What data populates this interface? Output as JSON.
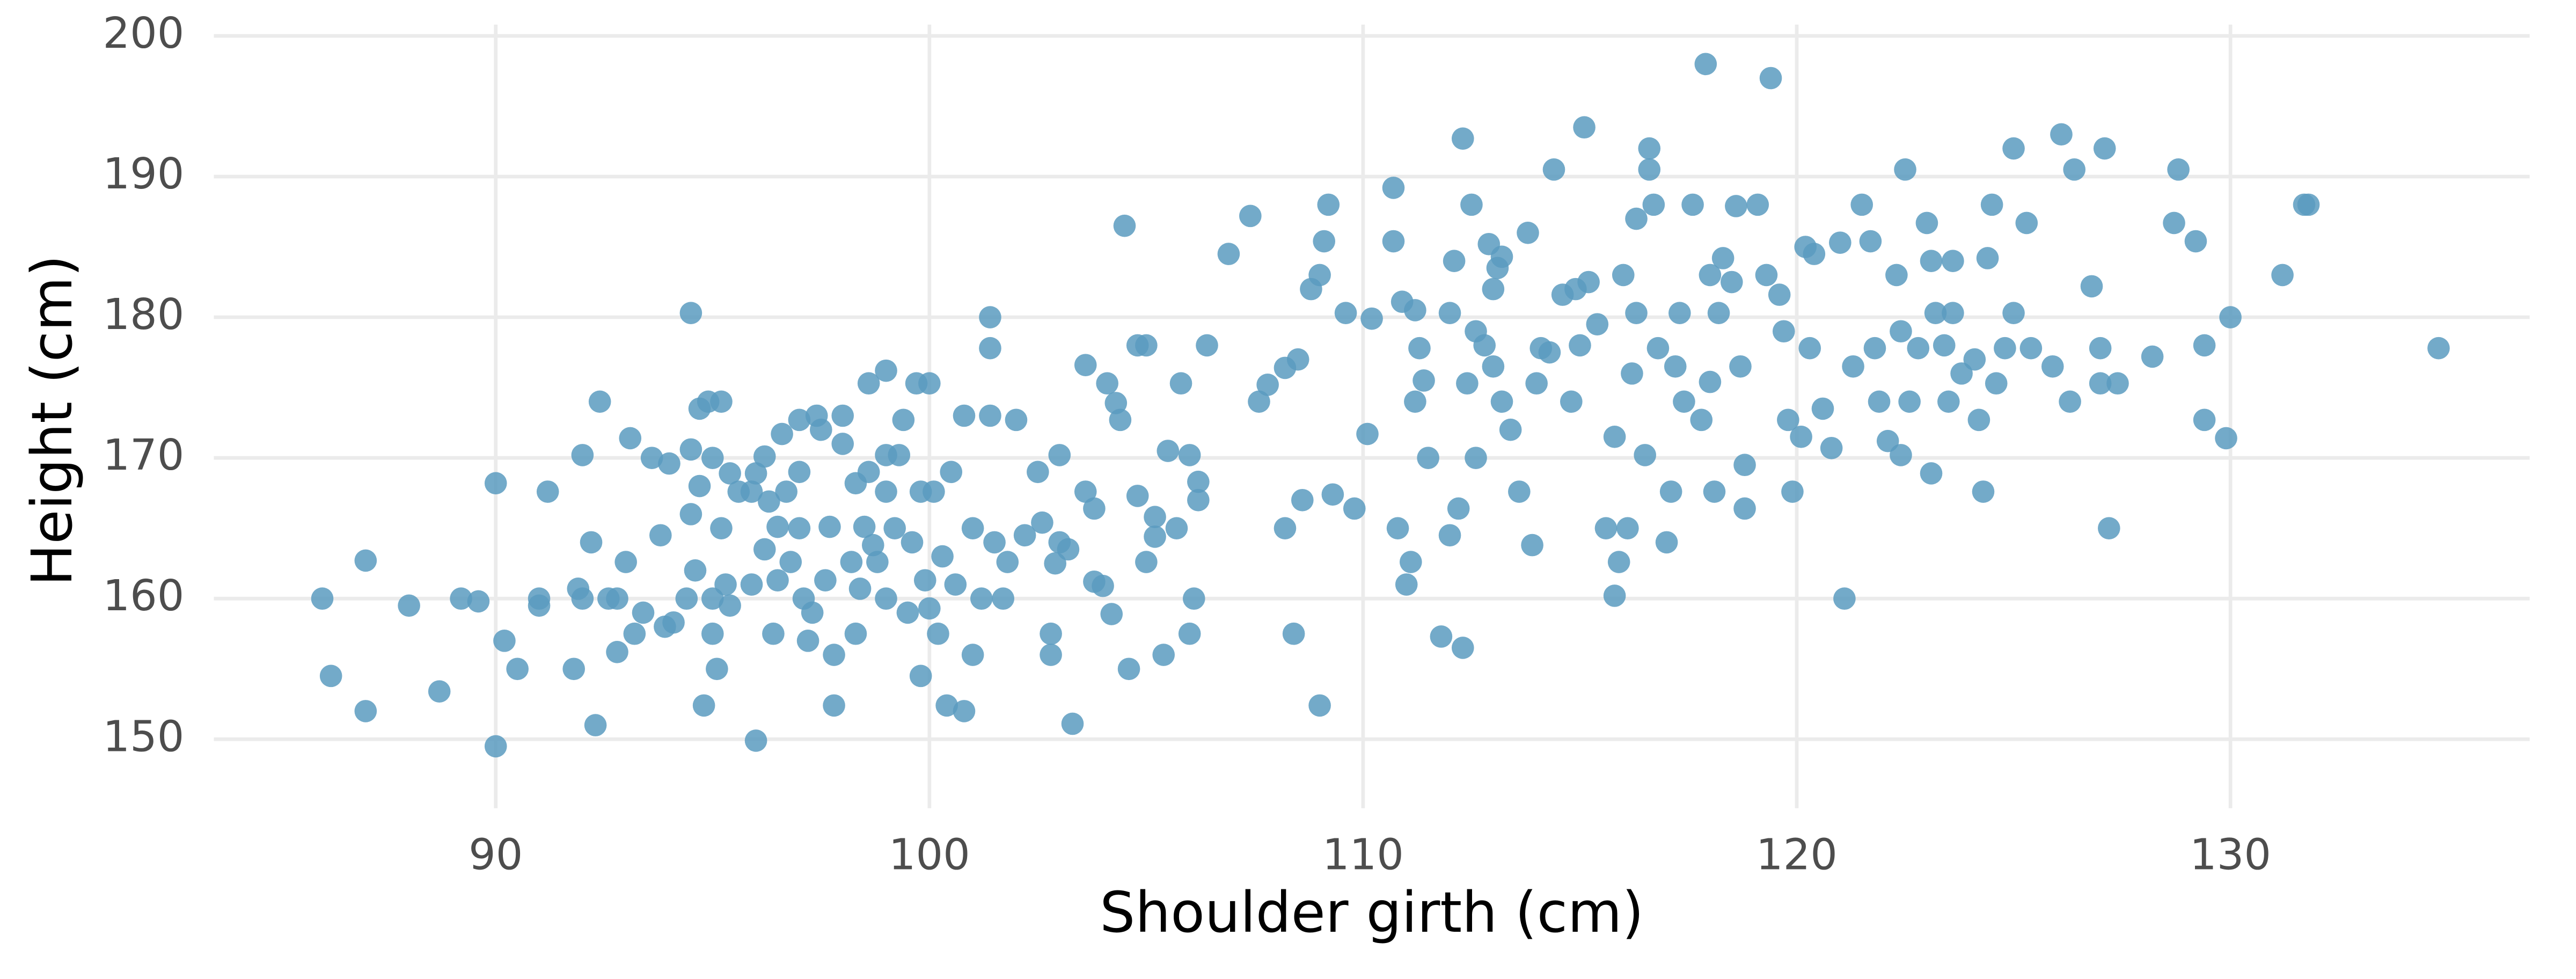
{
  "chart_data": {
    "type": "scatter",
    "x_label": "Shoulder girth (cm)",
    "y_label": "Height (cm)",
    "color": "#5a9bbf",
    "grid": true,
    "xlim": [
      83.5,
      136.9
    ],
    "ylim": [
      145.1,
      200.8
    ],
    "xticks": [
      90,
      100,
      110,
      120,
      130
    ],
    "yticks": [
      150,
      160,
      170,
      180,
      190,
      200
    ],
    "x": [
      86,
      86.2,
      87,
      87,
      88,
      88.7,
      89.2,
      89.6,
      90,
      90,
      90.2,
      90.5,
      91,
      91,
      91.2,
      91.8,
      91.9,
      92,
      92,
      92.2,
      92.3,
      92.4,
      92.6,
      92.8,
      92.8,
      93,
      93.1,
      93.2,
      93.4,
      93.6,
      93.8,
      93.9,
      94,
      94.1,
      94.4,
      94.5,
      94.5,
      94.5,
      94.6,
      94.7,
      94.7,
      94.8,
      94.9,
      95,
      95,
      95,
      95.1,
      95.2,
      95.2,
      95.3,
      95.4,
      95.4,
      95.6,
      95.9,
      95.9,
      96,
      96,
      96.2,
      96.2,
      96.3,
      96.4,
      96.5,
      96.5,
      96.6,
      96.7,
      96.8,
      97,
      97,
      97,
      97.1,
      97.2,
      97.3,
      97.4,
      97.5,
      97.6,
      97.7,
      97.8,
      97.8,
      98,
      98,
      98.2,
      98.3,
      98.3,
      98.4,
      98.5,
      98.6,
      98.6,
      98.7,
      98.8,
      99,
      99,
      99,
      99,
      99.2,
      99.3,
      99.4,
      99.5,
      99.6,
      99.7,
      99.8,
      99.8,
      99.9,
      100,
      100,
      100.1,
      100.2,
      100.3,
      100.4,
      100.5,
      100.6,
      100.8,
      100.8,
      101,
      101,
      101.2,
      101.4,
      101.4,
      101.5,
      101.7,
      101.8,
      102,
      102.2,
      102.5,
      102.6,
      101.4,
      102.8,
      102.8,
      102.9,
      103,
      103,
      103.2,
      103.6,
      103.6,
      103.8,
      103.8,
      104.1,
      104,
      104.2,
      104.3,
      104.4,
      104.6,
      104.8,
      104.8,
      105,
      105,
      105.2,
      105.2,
      103.3,
      105.4,
      105.5,
      105.7,
      105.8,
      106,
      106,
      106.1,
      106.2,
      106.2,
      106.4,
      104.5,
      106.9,
      107.4,
      107.6,
      107.8,
      108.2,
      108.5,
      108.8,
      109,
      109.2,
      109.1,
      109.6,
      109,
      108.4,
      108.2,
      108.6,
      109.3,
      109.8,
      110.1,
      110.2,
      110.7,
      110.7,
      110.9,
      111.2,
      111.3,
      111.2,
      111.4,
      110.8,
      111,
      111.1,
      111.5,
      111.8,
      112.2,
      112,
      112.1,
      112.3,
      112.5,
      112.4,
      112.6,
      112.8,
      112.9,
      113,
      113.1,
      113.2,
      113,
      113.2,
      113.4,
      113.6,
      112.3,
      112,
      112.6,
      113.9,
      113.8,
      114,
      114.1,
      114.3,
      114.4,
      114.6,
      114.8,
      114.9,
      115.1,
      115.2,
      115,
      115.4,
      115.6,
      115.8,
      115.9,
      115.8,
      116,
      116.2,
      116.3,
      116.3,
      116.1,
      116.6,
      116.6,
      116.7,
      116.8,
      116.5,
      117,
      117.1,
      117.2,
      117.3,
      117.4,
      117.6,
      117.8,
      117.9,
      118,
      118.2,
      118,
      118.1,
      118.3,
      118.5,
      118.6,
      118.7,
      118.8,
      118.8,
      119.1,
      119.4,
      119.3,
      119.6,
      119.7,
      119.8,
      119.9,
      120.1,
      120.2,
      120.4,
      120.3,
      120.6,
      120.8,
      121,
      121.1,
      121.3,
      121.5,
      121.7,
      121.8,
      121.9,
      122.1,
      122.3,
      122.5,
      122.4,
      122.6,
      122.4,
      122.8,
      123,
      123.1,
      123.2,
      123.1,
      123.4,
      123.6,
      123.6,
      123.5,
      123.8,
      124.1,
      124.2,
      124.3,
      124.4,
      124.5,
      124.6,
      124.8,
      125,
      125.3,
      125,
      125.4,
      125.9,
      126.1,
      126.4,
      126.3,
      126.8,
      127,
      127,
      127.2,
      127.1,
      127.4,
      128.2,
      128.7,
      128.8,
      129.2,
      129.4,
      129.4,
      129.9,
      130,
      131.2,
      131.7,
      131.8,
      134.8
    ],
    "y": [
      160,
      154.5,
      162.7,
      152,
      159.5,
      153.4,
      160,
      159.8,
      149.5,
      168.2,
      157,
      155,
      160,
      159.5,
      167.6,
      155,
      160.7,
      170.2,
      160,
      164,
      151,
      174,
      160,
      156.2,
      160,
      162.6,
      171.4,
      157.5,
      159,
      170,
      164.5,
      158,
      169.6,
      158.3,
      160,
      180.3,
      170.6,
      166,
      162,
      168,
      173.5,
      152.4,
      174,
      160,
      170,
      157.5,
      155,
      174,
      165,
      161,
      168.9,
      159.5,
      167.6,
      161,
      167.6,
      149.9,
      168.9,
      163.5,
      170.1,
      166.9,
      157.5,
      161.3,
      165.1,
      171.7,
      167.6,
      162.6,
      169,
      165,
      172.7,
      160,
      157,
      159,
      173,
      172,
      161.3,
      165.1,
      156,
      152.4,
      171,
      173,
      162.6,
      168.2,
      157.5,
      160.7,
      165.1,
      175.3,
      169,
      163.8,
      162.6,
      160,
      176.2,
      170.2,
      167.6,
      165,
      170.2,
      172.7,
      159,
      164,
      175.3,
      154.5,
      167.6,
      161.3,
      159.3,
      175.3,
      167.6,
      157.5,
      163,
      152.4,
      169,
      161,
      152,
      173,
      165,
      156,
      160,
      177.8,
      173,
      164,
      160,
      162.6,
      172.7,
      164.5,
      169,
      165.4,
      180,
      157.5,
      156,
      162.5,
      170.2,
      164,
      163.5,
      176.6,
      167.6,
      161.2,
      166.4,
      175.3,
      160.9,
      158.9,
      173.9,
      172.7,
      155,
      167.3,
      178,
      178,
      162.6,
      165.8,
      164.4,
      151.1,
      156,
      170.5,
      165,
      175.3,
      170.2,
      157.5,
      160,
      167,
      168.3,
      178,
      186.5,
      184.5,
      187.2,
      174,
      175.2,
      176.4,
      177,
      182,
      183,
      188,
      185.4,
      180.3,
      152.4,
      157.5,
      165,
      167,
      167.4,
      166.4,
      171.7,
      179.9,
      189.2,
      185.4,
      181.1,
      180.5,
      177.8,
      174,
      175.5,
      165,
      161,
      162.6,
      170,
      157.3,
      166.4,
      180.3,
      184,
      192.7,
      188,
      175.3,
      179,
      178,
      185.2,
      182,
      183.5,
      184.3,
      176.5,
      174,
      172,
      167.6,
      156.5,
      164.5,
      170,
      163.8,
      186,
      175.3,
      177.8,
      177.5,
      190.5,
      181.6,
      174,
      182,
      193.5,
      182.5,
      178,
      179.5,
      165,
      171.5,
      162.6,
      160.2,
      183,
      176,
      187,
      180.3,
      165,
      192,
      190.5,
      188,
      177.8,
      170.2,
      164,
      167.6,
      176.5,
      180.3,
      174,
      188,
      172.7,
      198,
      183,
      180.3,
      175.4,
      167.6,
      184.2,
      182.5,
      187.9,
      176.5,
      169.5,
      166.4,
      188,
      197,
      183,
      181.6,
      179,
      172.7,
      167.6,
      171.5,
      185,
      184.5,
      177.8,
      173.5,
      170.7,
      185.3,
      160,
      176.5,
      188,
      185.4,
      177.8,
      174,
      171.2,
      183,
      190.5,
      179,
      174,
      170.2,
      177.8,
      186.7,
      184,
      180.3,
      168.9,
      178,
      184,
      180.3,
      174,
      176,
      177,
      172.7,
      167.6,
      184.2,
      188,
      175.3,
      177.8,
      192,
      186.7,
      180.3,
      177.8,
      176.5,
      193,
      190.5,
      174,
      182.2,
      177.8,
      175.3,
      165,
      192,
      175.3,
      177.2,
      186.7,
      190.5,
      185.4,
      178,
      172.7,
      171.4,
      180,
      183,
      188,
      188,
      177.8
    ]
  }
}
